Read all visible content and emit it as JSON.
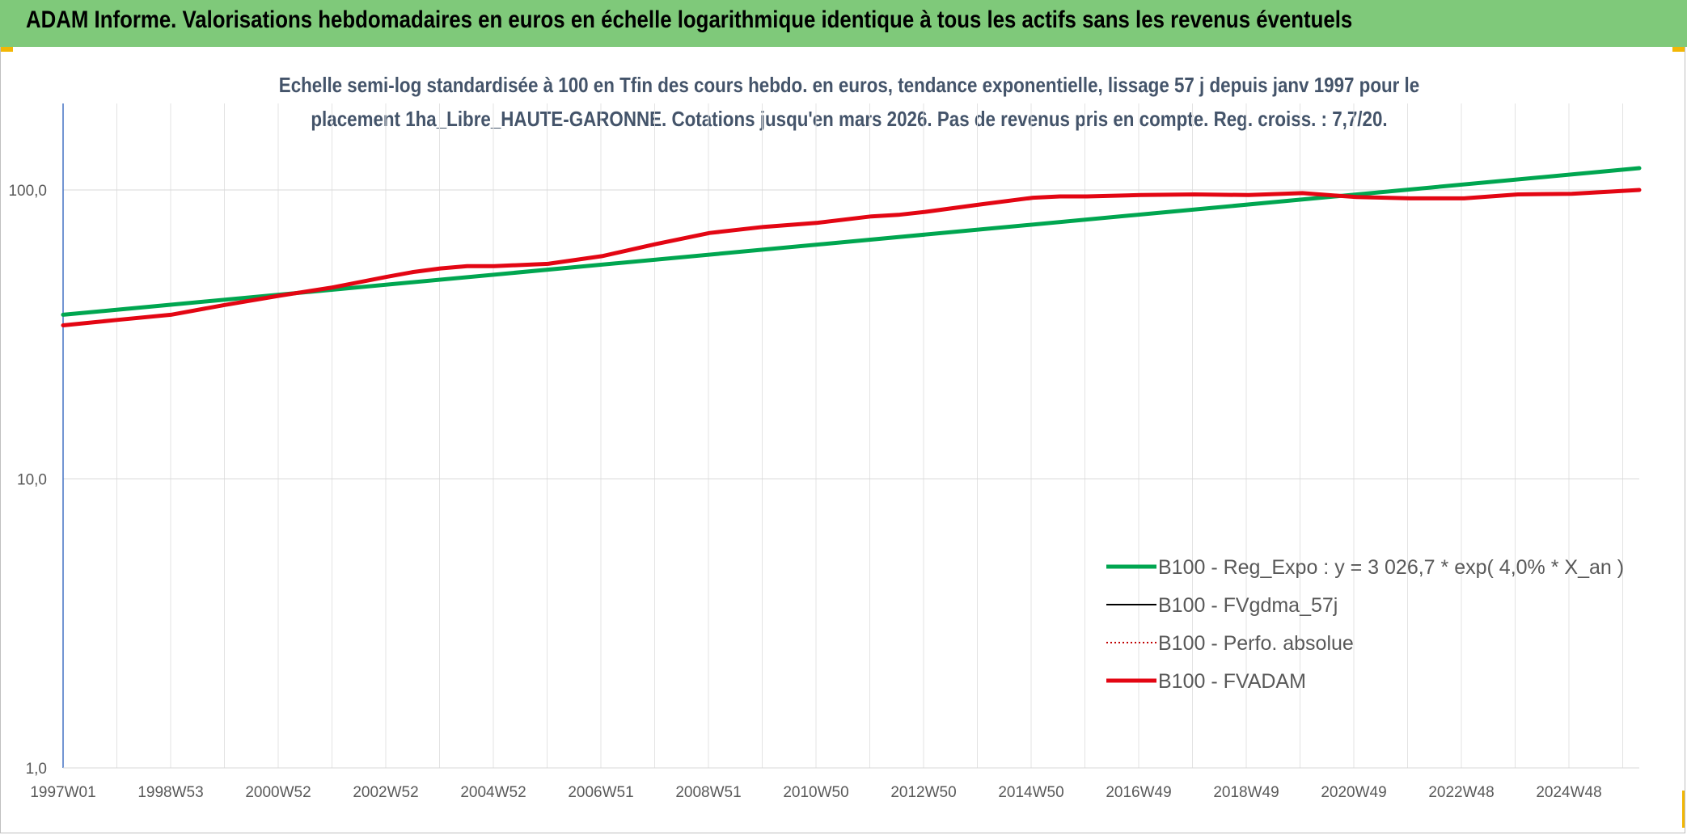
{
  "header": {
    "title": "ADAM Informe. Valorisations hebdomadaires en euros en échelle logarithmique identique à tous les actifs sans les revenus éventuels"
  },
  "colors": {
    "header_bg": "#7fc97a",
    "corner_accent": "#f2b705",
    "trend": "#00a650",
    "fvadam": "#e30613",
    "fvgdma": "#000000",
    "perfo": "#c00000"
  },
  "chart_data": {
    "type": "line",
    "title_line1": "Echelle semi-log standardisée à 100 en Tfin des cours hebdo. en euros, tendance exponentielle, lissage 57 j depuis janv 1997 pour le",
    "title_line2": "placement 1ha_Libre_HAUTE-GARONNE. Cotations jusqu'en mars 2026. Pas de revenus pris en compte. Reg. croiss. : 7,7/20.",
    "y_scale": "log",
    "ylim": [
      1,
      100
    ],
    "y_ticks": [
      {
        "value": 100,
        "label": "100,0"
      },
      {
        "value": 10,
        "label": "10,0"
      },
      {
        "value": 1,
        "label": "1,0"
      }
    ],
    "x_range": [
      1997.0,
      2026.25
    ],
    "x_tick_labels": [
      "1997W01",
      "1998W53",
      "2000W52",
      "2002W52",
      "2004W52",
      "2006W51",
      "2008W51",
      "2010W50",
      "2012W50",
      "2014W50",
      "2016W49",
      "2018W49",
      "2020W49",
      "2022W48",
      "2024W48"
    ],
    "grid": true,
    "legend_position": "bottom-right",
    "series": [
      {
        "name": "B100 - Reg_Expo : y = 3 026,7 * exp( 4,0% *  X_an )",
        "style": "thick-solid",
        "color": "#00a650",
        "x": [
          1997.0,
          2026.25
        ],
        "y": [
          37.0,
          119.0
        ]
      },
      {
        "name": "B100 - FVgdma_57j",
        "style": "thin-solid",
        "color": "#000000",
        "x": [],
        "y": []
      },
      {
        "name": "B100 - Perfo. absolue",
        "style": "dotted",
        "color": "#c00000",
        "x": [],
        "y": []
      },
      {
        "name": "B100 - FVADAM",
        "style": "thick-solid",
        "color": "#e30613",
        "x": [
          1997.0,
          1998.0,
          1999.0,
          2000.0,
          2001.0,
          2002.0,
          2003.0,
          2003.5,
          2004.0,
          2004.5,
          2005.0,
          2006.0,
          2007.0,
          2008.0,
          2009.0,
          2010.0,
          2011.0,
          2012.0,
          2012.5,
          2013.0,
          2014.0,
          2015.0,
          2015.5,
          2016.0,
          2017.0,
          2018.0,
          2019.0,
          2020.0,
          2021.0,
          2022.0,
          2023.0,
          2024.0,
          2025.0,
          2026.25
        ],
        "y": [
          34.0,
          35.5,
          37.0,
          40.0,
          43.0,
          46.0,
          50.0,
          52.0,
          53.5,
          54.5,
          54.5,
          55.5,
          59.0,
          65.0,
          71.0,
          74.5,
          77.0,
          81.0,
          82.0,
          84.0,
          89.0,
          94.0,
          95.0,
          95.0,
          96.0,
          96.5,
          96.0,
          97.5,
          94.5,
          93.5,
          93.5,
          96.5,
          97.0,
          100.0
        ]
      }
    ]
  }
}
